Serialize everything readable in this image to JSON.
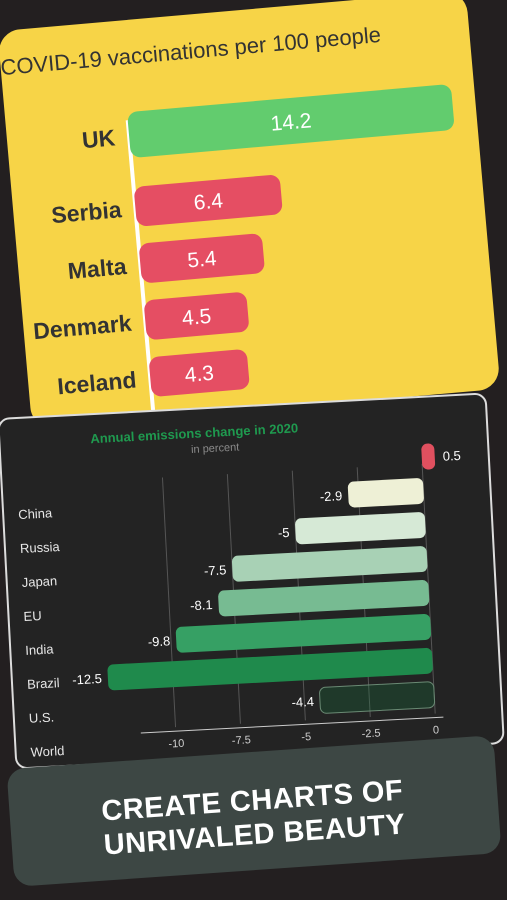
{
  "chart_data": [
    {
      "type": "bar",
      "title": "COVID-19 vaccinations per 100 people",
      "categories": [
        "UK",
        "Serbia",
        "Malta",
        "Denmark",
        "Iceland"
      ],
      "values": [
        14.2,
        6.4,
        5.4,
        4.5,
        4.3
      ],
      "colors": [
        "#62cc6e",
        "#e54e63",
        "#e54e63",
        "#e54e63",
        "#e54e63"
      ],
      "value_labels": [
        "14.2",
        "6.4",
        "5.4",
        "4.5",
        "4.3"
      ]
    },
    {
      "type": "bar",
      "title": "Annual emissions change in 2020",
      "subtitle": "in percent",
      "categories": [
        "China",
        "Russia",
        "Japan",
        "EU",
        "India",
        "Brazil",
        "U.S.",
        "World"
      ],
      "values": [
        0.5,
        -2.9,
        -5,
        -7.5,
        -8.1,
        -9.8,
        -12.5,
        -4.4
      ],
      "value_labels": [
        "0.5",
        "-2.9",
        "-5",
        "-7.5",
        "-8.1",
        "-9.8",
        "-12.5",
        "-4.4"
      ],
      "colors": [
        "#e0505f",
        "#eef0d6",
        "#d6e9d6",
        "#a8d1b5",
        "#77bb92",
        "#36a064",
        "#1f8a4c",
        "#147a3f"
      ],
      "x_ticks": [
        "-10",
        "-7.5",
        "-5",
        "-2.5",
        "0"
      ],
      "xlim": [
        -12.5,
        0.5
      ],
      "grid": true
    }
  ],
  "slogan": {
    "line1": "CREATE CHARTS OF",
    "line2": "UNRIVALED BEAUTY"
  },
  "colors": {
    "background": "#231f20",
    "card_yellow": "#f7d447",
    "dark_card": "#232323",
    "banner": "#3d4744"
  }
}
